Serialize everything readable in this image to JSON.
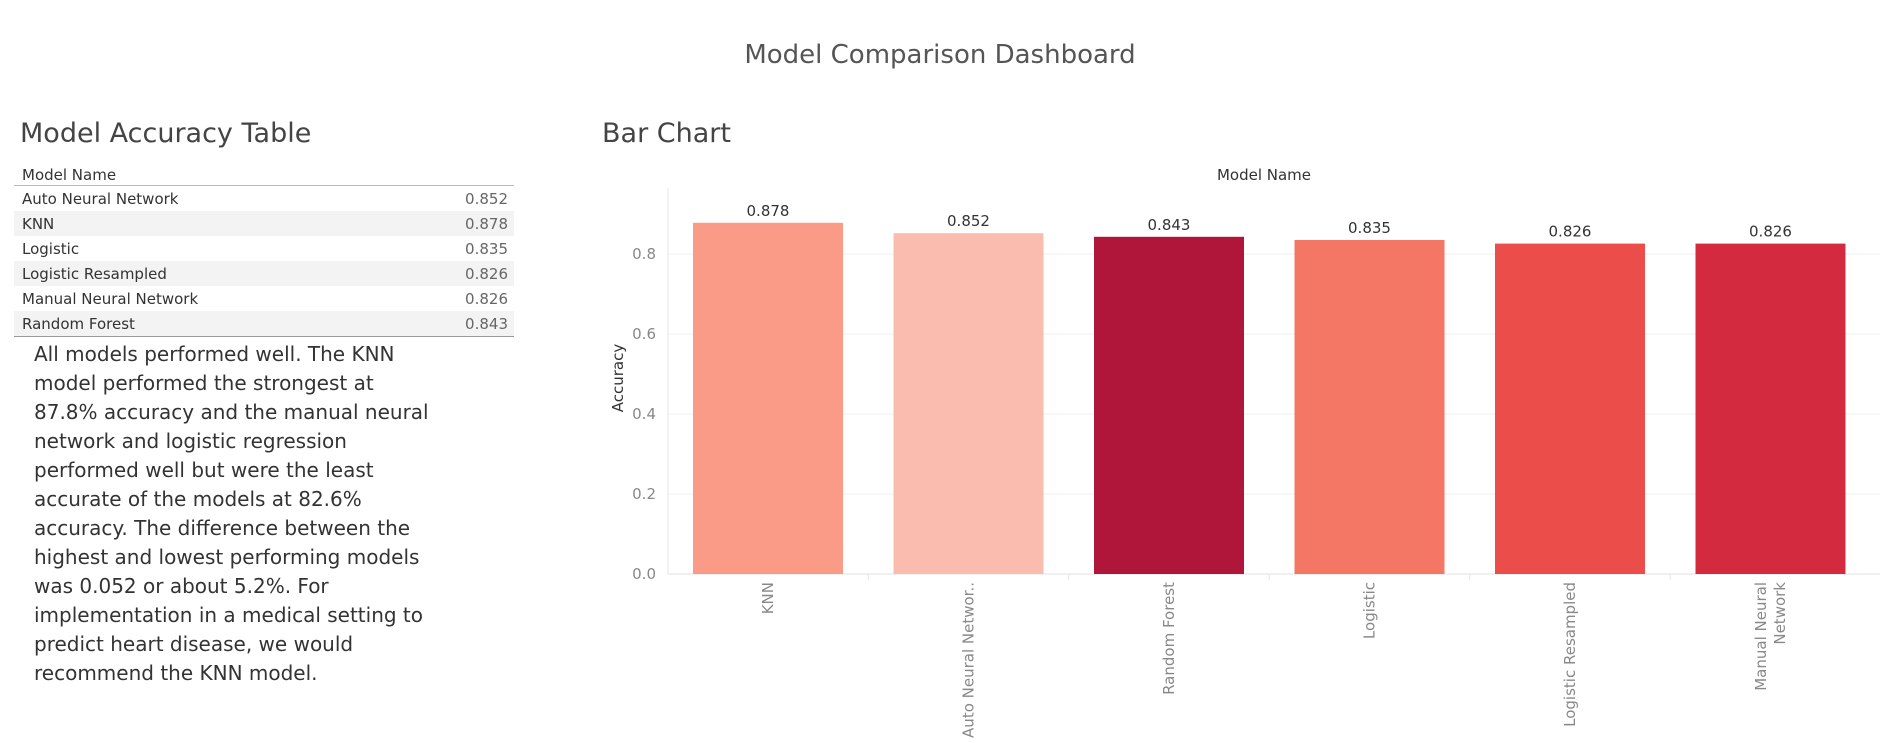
{
  "dashboard": {
    "title": "Model Comparison Dashboard"
  },
  "table": {
    "title": "Model Accuracy Table",
    "header": "Model Name",
    "rows": [
      {
        "name": "Auto Neural Network",
        "value": "0.852"
      },
      {
        "name": "KNN",
        "value": "0.878"
      },
      {
        "name": "Logistic",
        "value": "0.835"
      },
      {
        "name": "Logistic Resampled",
        "value": "0.826"
      },
      {
        "name": "Manual Neural Network",
        "value": "0.826"
      },
      {
        "name": "Random Forest",
        "value": "0.843"
      }
    ]
  },
  "commentary": "All models performed well.  The KNN model performed the strongest at 87.8% accuracy and the manual neural network and logistic regression performed well but were the least accurate of the models at 82.6% accuracy. The difference between the highest and lowest performing models was 0.052 or about 5.2%. For implementation in a medical setting to predict heart disease, we would recommend the KNN model.",
  "chart": {
    "title": "Bar Chart"
  },
  "chart_data": {
    "type": "bar",
    "title": "",
    "xlabel": "Model Name",
    "ylabel": "Accuracy",
    "categories": [
      "KNN",
      "Auto Neural Networ..",
      "Random Forest",
      "Logistic",
      "Logistic Resampled",
      "Manual Neural Network"
    ],
    "category_label_lines": [
      [
        "KNN"
      ],
      [
        "Auto Neural Networ.."
      ],
      [
        "Random Forest"
      ],
      [
        "Logistic"
      ],
      [
        "Logistic Resampled"
      ],
      [
        "Manual Neural",
        "Network"
      ]
    ],
    "values": [
      0.878,
      0.852,
      0.843,
      0.835,
      0.826,
      0.826
    ],
    "value_labels": [
      "0.878",
      "0.852",
      "0.843",
      "0.835",
      "0.826",
      "0.826"
    ],
    "colors": [
      "#f99b86",
      "#fbbcb0",
      "#b0163a",
      "#f47766",
      "#ea4d4a",
      "#d32a40"
    ],
    "ylim": [
      0,
      0.95
    ],
    "yticks": [
      "0.0",
      "0.2",
      "0.4",
      "0.6",
      "0.8"
    ],
    "grid": true,
    "legend": "none"
  }
}
